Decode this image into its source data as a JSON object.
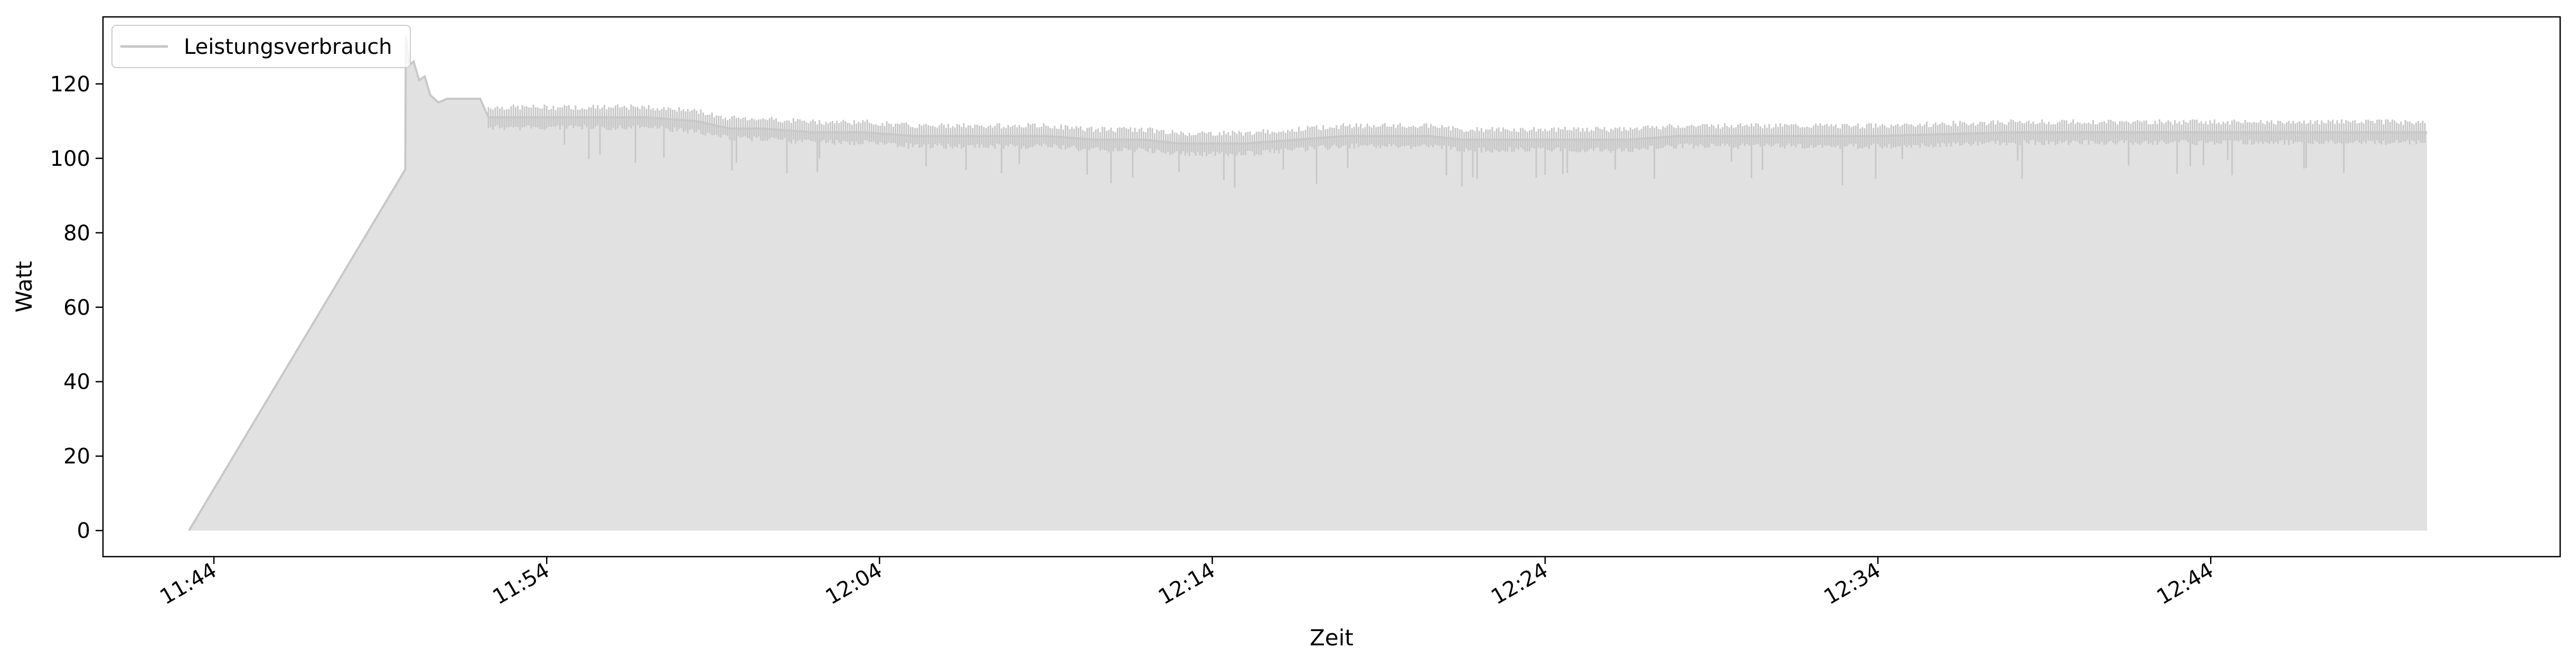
{
  "chart_data": {
    "type": "area",
    "xlabel": "Zeit",
    "ylabel": "Watt",
    "x_unit": "time (HH:MM)",
    "xlim": [
      "11:40:40",
      "12:54:30"
    ],
    "ylim": [
      -7,
      138
    ],
    "grid": false,
    "legend_position": "top-left",
    "x_ticks": [
      "11:44",
      "11:54",
      "12:04",
      "12:14",
      "12:24",
      "12:34",
      "12:44"
    ],
    "y_ticks": [
      0,
      20,
      40,
      60,
      80,
      100,
      120
    ],
    "line_color": "#c8c8c8",
    "fill_color": "#e1e1e1",
    "series": [
      {
        "name": "Leistungsverbrauch",
        "x": [
          "11:43:15",
          "11:49:45",
          "11:49:46",
          "11:49:52",
          "11:50:00",
          "11:50:10",
          "11:50:20",
          "11:50:30",
          "11:50:45",
          "11:51:00",
          "11:51:30",
          "11:52:00",
          "11:52:15",
          "11:53:00",
          "11:55:00",
          "11:57:00",
          "11:58:30",
          "11:59:30",
          "12:00:30",
          "12:02:00",
          "12:03:30",
          "12:05:00",
          "12:07:00",
          "12:09:00",
          "12:10:30",
          "12:12:00",
          "12:13:00",
          "12:13:30",
          "12:15:00",
          "12:18:00",
          "12:20:30",
          "12:21:30",
          "12:23:00",
          "12:25:00",
          "12:26:30",
          "12:28:00",
          "12:30:00",
          "12:34:00",
          "12:38:00",
          "12:42:00",
          "12:45:30",
          "12:47:00",
          "12:49:00",
          "12:50:30"
        ],
        "y": [
          0,
          97,
          133,
          125,
          126,
          121,
          122,
          117,
          115,
          116,
          116,
          116,
          111,
          111,
          111,
          111,
          110,
          108,
          108,
          107,
          107,
          106,
          106,
          106,
          105,
          105,
          104,
          104,
          104,
          106,
          106,
          105,
          105,
          105,
          105,
          106,
          106,
          106,
          107,
          107,
          107,
          107,
          107,
          107
        ]
      }
    ]
  }
}
